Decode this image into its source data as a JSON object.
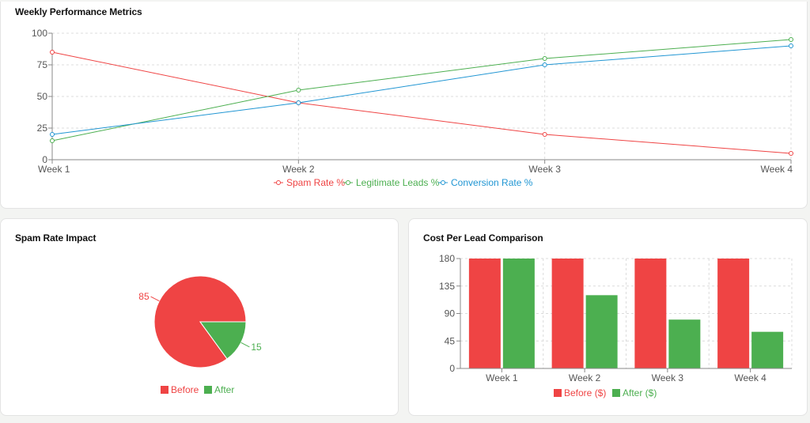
{
  "chart_data": [
    {
      "type": "line",
      "title": "Weekly Performance Metrics",
      "categories": [
        "Week 1",
        "Week 2",
        "Week 3",
        "Week 4"
      ],
      "ylim": [
        0,
        100
      ],
      "yticks": [
        0,
        25,
        50,
        75,
        100
      ],
      "grid": true,
      "legend_position": "bottom",
      "series": [
        {
          "name": "Spam Rate %",
          "values": [
            85,
            45,
            20,
            5
          ],
          "color": "#ef4444"
        },
        {
          "name": "Legitimate Leads %",
          "values": [
            15,
            55,
            80,
            95
          ],
          "color": "#4caf50"
        },
        {
          "name": "Conversion Rate %",
          "values": [
            20,
            45,
            75,
            90
          ],
          "color": "#2196d3"
        }
      ]
    },
    {
      "type": "pie",
      "title": "Spam Rate Impact",
      "legend_position": "bottom",
      "slices": [
        {
          "name": "Before",
          "value": 85,
          "color": "#ef4444"
        },
        {
          "name": "After",
          "value": 15,
          "color": "#4caf50"
        }
      ]
    },
    {
      "type": "bar",
      "title": "Cost Per Lead Comparison",
      "categories": [
        "Week 1",
        "Week 2",
        "Week 3",
        "Week 4"
      ],
      "ylim": [
        0,
        180
      ],
      "yticks": [
        0,
        45,
        90,
        135,
        180
      ],
      "grid": true,
      "legend_position": "bottom",
      "series": [
        {
          "name": "Before ($)",
          "values": [
            185,
            185,
            185,
            185
          ],
          "color": "#ef4444"
        },
        {
          "name": "After ($)",
          "values": [
            185,
            120,
            80,
            60
          ],
          "color": "#4caf50"
        }
      ]
    }
  ]
}
